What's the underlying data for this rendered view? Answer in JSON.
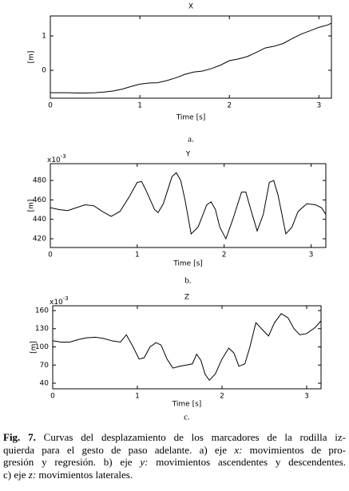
{
  "chart_data": [
    {
      "type": "line",
      "title": "X",
      "xlabel": "Time [s]",
      "ylabel": "[m]",
      "sublabel": "a.",
      "x": [
        0,
        0.1,
        0.2,
        0.3,
        0.4,
        0.5,
        0.6,
        0.7,
        0.8,
        0.9,
        1.0,
        1.1,
        1.2,
        1.3,
        1.4,
        1.5,
        1.6,
        1.7,
        1.8,
        1.9,
        2.0,
        2.1,
        2.2,
        2.3,
        2.4,
        2.5,
        2.6,
        2.7,
        2.8,
        2.9,
        3.0,
        3.1,
        3.14
      ],
      "series": [
        {
          "color": "#000000",
          "values": [
            -0.65,
            -0.65,
            -0.65,
            -0.66,
            -0.66,
            -0.65,
            -0.63,
            -0.6,
            -0.55,
            -0.47,
            -0.4,
            -0.37,
            -0.36,
            -0.3,
            -0.22,
            -0.12,
            -0.05,
            -0.02,
            0.05,
            0.15,
            0.28,
            0.33,
            0.4,
            0.52,
            0.65,
            0.7,
            0.78,
            0.92,
            1.05,
            1.15,
            1.25,
            1.32,
            1.37
          ]
        }
      ],
      "xlim": [
        0,
        3.14
      ],
      "xticks": [
        0,
        1,
        2,
        3
      ],
      "ylim": [
        -0.81,
        1.58
      ],
      "yticks": [
        0,
        1
      ]
    },
    {
      "type": "line",
      "title": "Y",
      "xlabel": "Time [s]",
      "ylabel": "[m]",
      "sublabel": "b.",
      "y_scale_label": {
        "base": "x10",
        "exponent": "-3"
      },
      "x": [
        0,
        0.1,
        0.2,
        0.3,
        0.4,
        0.5,
        0.6,
        0.7,
        0.8,
        0.9,
        1.0,
        1.05,
        1.1,
        1.2,
        1.24,
        1.3,
        1.4,
        1.45,
        1.5,
        1.55,
        1.62,
        1.7,
        1.8,
        1.85,
        1.9,
        1.95,
        2.02,
        2.1,
        2.2,
        2.25,
        2.3,
        2.38,
        2.45,
        2.52,
        2.57,
        2.62,
        2.71,
        2.78,
        2.85,
        2.95,
        3.05,
        3.12,
        3.17
      ],
      "series": [
        {
          "color": "#000000",
          "values": [
            452,
            450,
            449,
            452,
            455,
            454,
            448,
            443,
            448,
            462,
            478,
            479,
            470,
            450,
            447,
            456,
            484,
            488,
            480,
            460,
            425,
            432,
            455,
            458,
            450,
            432,
            420,
            440,
            468,
            468,
            452,
            428,
            445,
            478,
            480,
            465,
            425,
            432,
            448,
            456,
            455,
            452,
            445
          ]
        }
      ],
      "xlim": [
        0,
        3.17
      ],
      "xticks": [
        0,
        1,
        2,
        3
      ],
      "ylim": [
        411,
        497.3
      ],
      "yticks": [
        420,
        440,
        460,
        480
      ]
    },
    {
      "type": "line",
      "title": "Z",
      "xlabel": "Time [s]",
      "ylabel": "[m]",
      "sublabel": "c.",
      "y_scale_label": {
        "base": "x10",
        "exponent": "-3"
      },
      "x": [
        0,
        0.1,
        0.2,
        0.3,
        0.4,
        0.5,
        0.6,
        0.7,
        0.8,
        0.87,
        0.95,
        1.02,
        1.08,
        1.15,
        1.22,
        1.28,
        1.35,
        1.42,
        1.5,
        1.58,
        1.65,
        1.7,
        1.75,
        1.8,
        1.85,
        1.92,
        2.0,
        2.08,
        2.14,
        2.2,
        2.27,
        2.33,
        2.4,
        2.48,
        2.55,
        2.62,
        2.7,
        2.78,
        2.85,
        2.92,
        3.0,
        3.1,
        3.17
      ],
      "series": [
        {
          "color": "#000000",
          "values": [
            110,
            108,
            108,
            112,
            115,
            116,
            114,
            110,
            108,
            120,
            100,
            80,
            82,
            100,
            107,
            103,
            80,
            65,
            68,
            70,
            72,
            88,
            78,
            55,
            45,
            55,
            80,
            98,
            90,
            68,
            72,
            100,
            140,
            128,
            118,
            140,
            155,
            148,
            130,
            120,
            122,
            132,
            143
          ]
        }
      ],
      "xlim": [
        0,
        3.17
      ],
      "xticks": [
        0,
        1,
        2,
        3
      ],
      "ylim": [
        30.8,
        167.9
      ],
      "yticks": [
        40,
        70,
        100,
        130,
        160
      ]
    }
  ],
  "caption": {
    "label": "Fig. 7.",
    "lines": [
      [
        " Curvas del desplazamiento de los marcadores de la rodilla iz-"
      ],
      [
        "quierda para el gesto de paso adelante. a) eje ",
        "x:",
        " movimientos de pro-"
      ],
      [
        "gresión y regresión. b) eje ",
        "y:",
        " movimientos ascendentes y descendentes."
      ],
      [
        "c) eje ",
        "z:",
        " movimientos laterales."
      ]
    ]
  }
}
